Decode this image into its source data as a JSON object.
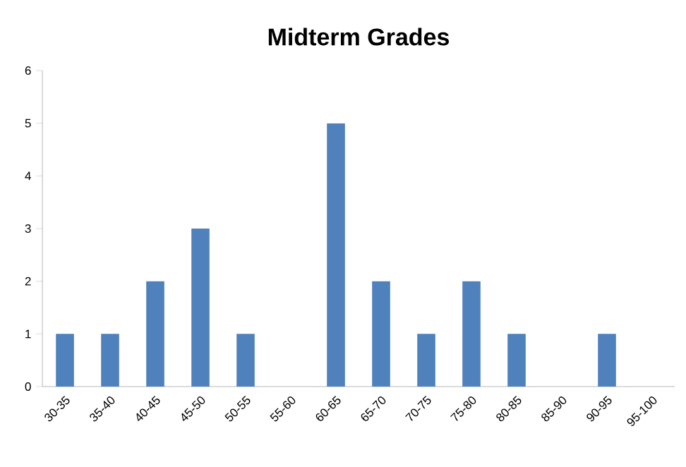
{
  "chart_data": {
    "type": "bar",
    "title": "Midterm Grades",
    "categories": [
      "30-35",
      "35-40",
      "40-45",
      "45-50",
      "50-55",
      "55-60",
      "60-65",
      "65-70",
      "70-75",
      "75-80",
      "80-85",
      "85-90",
      "90-95",
      "95-100"
    ],
    "values": [
      1,
      1,
      2,
      3,
      1,
      0,
      5,
      2,
      1,
      2,
      1,
      0,
      1,
      0
    ],
    "color": "#4f81bd",
    "ylim": [
      0,
      6
    ],
    "yticks": [
      0,
      1,
      2,
      3,
      4,
      5,
      6
    ]
  }
}
